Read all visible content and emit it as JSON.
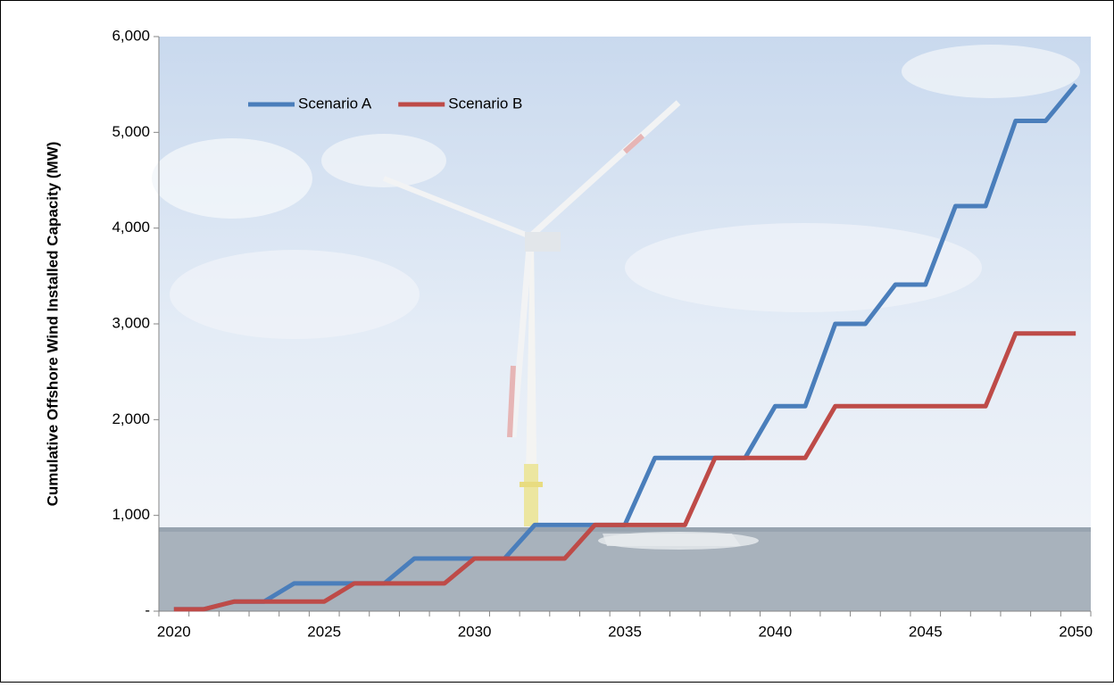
{
  "chart_data": {
    "type": "line",
    "y_label": "Cumulative Offshore Wind Installed Capacity (MW)",
    "x": [
      2020,
      2021,
      2022,
      2023,
      2024,
      2025,
      2026,
      2027,
      2028,
      2029,
      2030,
      2031,
      2032,
      2033,
      2034,
      2035,
      2036,
      2037,
      2038,
      2039,
      2040,
      2041,
      2042,
      2043,
      2044,
      2045,
      2046,
      2047,
      2048,
      2049,
      2050
    ],
    "series": [
      {
        "name": "Scenario A",
        "color": "#4a7ebb",
        "values": [
          20,
          20,
          100,
          100,
          290,
          290,
          290,
          290,
          550,
          550,
          550,
          550,
          900,
          900,
          900,
          900,
          1600,
          1600,
          1600,
          1600,
          2140,
          2140,
          3000,
          3000,
          3410,
          3410,
          4230,
          4230,
          5120,
          5120,
          5500
        ]
      },
      {
        "name": "Scenario B",
        "color": "#be4b48",
        "values": [
          20,
          20,
          100,
          100,
          100,
          100,
          290,
          290,
          290,
          290,
          550,
          550,
          550,
          550,
          900,
          900,
          900,
          900,
          1600,
          1600,
          1600,
          1600,
          2140,
          2140,
          2140,
          2140,
          2140,
          2140,
          2900,
          2900,
          2900
        ]
      }
    ],
    "xlim": [
      2019.5,
      2050.5
    ],
    "xticks": [
      2020,
      2025,
      2030,
      2035,
      2040,
      2045,
      2050
    ],
    "ylim": [
      0,
      6000
    ],
    "yticks": [
      {
        "value": 0,
        "label": "-"
      },
      {
        "value": 1000,
        "label": "1,000"
      },
      {
        "value": 2000,
        "label": "2,000"
      },
      {
        "value": 3000,
        "label": "3,000"
      },
      {
        "value": 4000,
        "label": "4,000"
      },
      {
        "value": 5000,
        "label": "5,000"
      },
      {
        "value": 6000,
        "label": "6,000"
      }
    ],
    "legend": "top-left"
  }
}
